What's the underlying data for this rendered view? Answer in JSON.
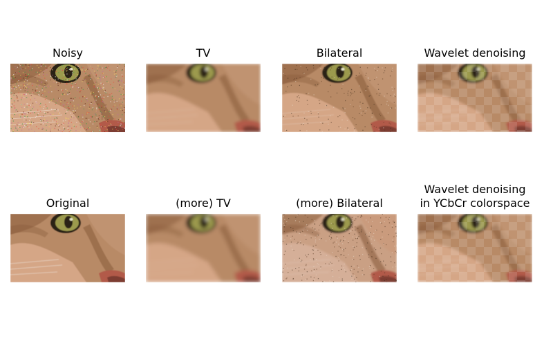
{
  "figure": {
    "panels": [
      {
        "id": "noisy",
        "title": "Noisy",
        "title_line2": "",
        "variant": "noisy"
      },
      {
        "id": "tv",
        "title": "TV",
        "title_line2": "",
        "variant": "tv"
      },
      {
        "id": "bilateral",
        "title": "Bilateral",
        "title_line2": "",
        "variant": "bilateral"
      },
      {
        "id": "wavelet",
        "title": "Wavelet denoising",
        "title_line2": "",
        "variant": "wavelet"
      },
      {
        "id": "original",
        "title": "Original",
        "title_line2": "",
        "variant": "original"
      },
      {
        "id": "more-tv",
        "title": "(more) TV",
        "title_line2": "",
        "variant": "tv2"
      },
      {
        "id": "more-bilateral",
        "title": "(more) Bilateral",
        "title_line2": "",
        "variant": "bilateral2"
      },
      {
        "id": "wavelet-ycbcr",
        "title": "Wavelet denoising",
        "title_line2": "in YCbCr colorspace",
        "variant": "wavelet2"
      }
    ],
    "colors": {
      "fur_light": "#d8a98a",
      "fur_mid": "#b88a66",
      "fur_dark": "#8a5d3d",
      "eye_iris": "#9c9a4e",
      "eye_dark": "#2a2014",
      "nose": "#b25a4a"
    }
  }
}
